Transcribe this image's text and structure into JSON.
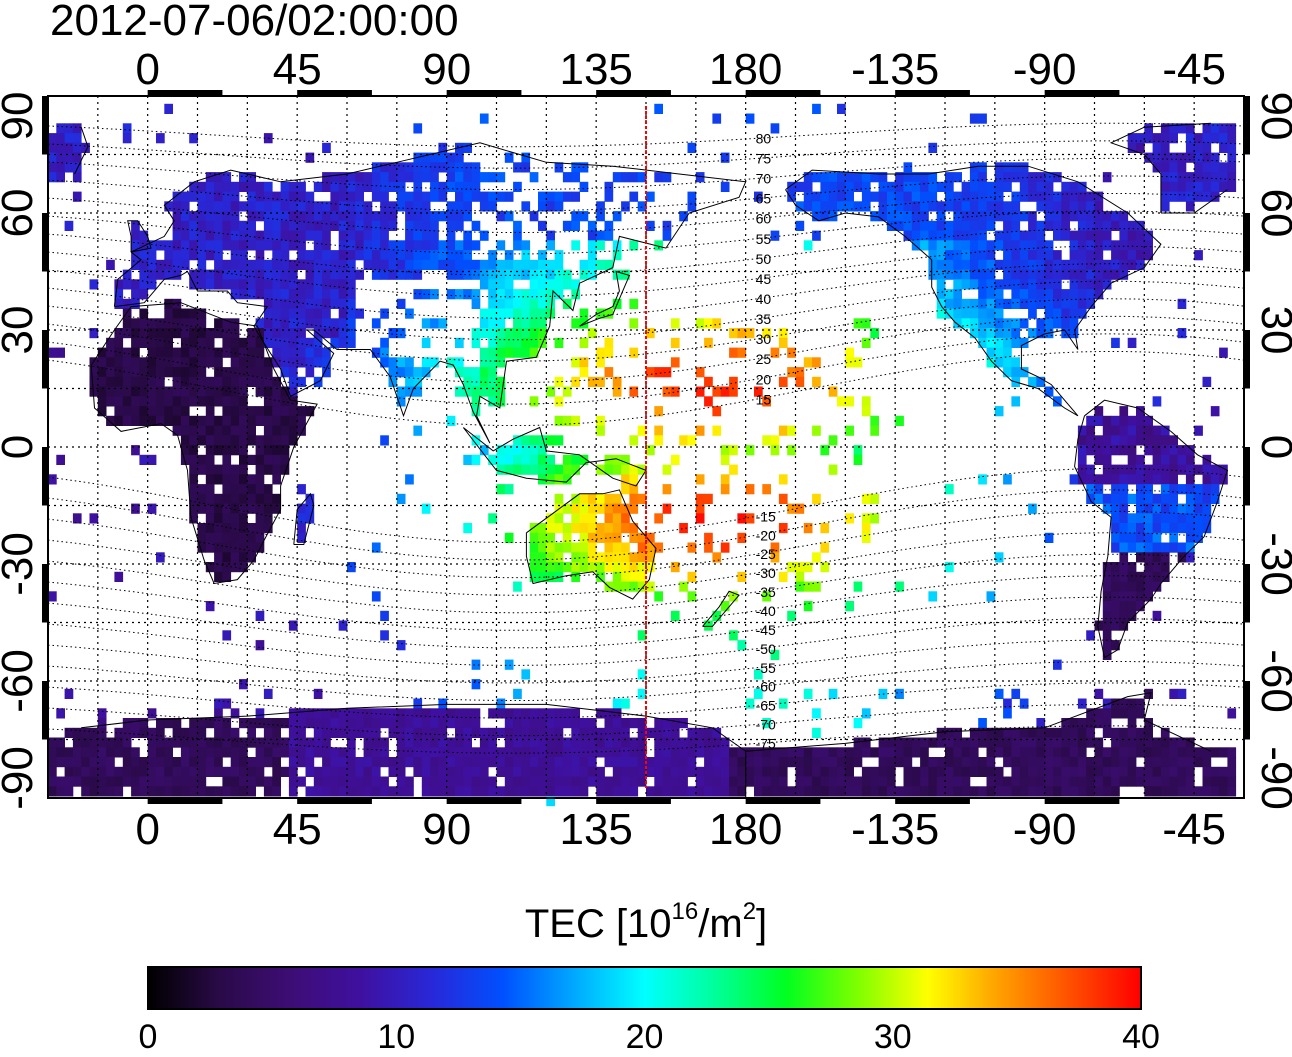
{
  "title": "2012-07-06/02:00:00",
  "map": {
    "lon_ticks_top": [
      "0",
      "45",
      "90",
      "135",
      "180",
      "-135",
      "-90",
      "-45"
    ],
    "lon_ticks_bottom": [
      "0",
      "45",
      "90",
      "135",
      "180",
      "-135",
      "-90",
      "-45"
    ],
    "lat_ticks_left": [
      "90",
      "60",
      "30",
      "0",
      "-30",
      "-60",
      "-90"
    ],
    "lat_ticks_right": [
      "90",
      "60",
      "30",
      "0",
      "-30",
      "-60",
      "-90"
    ],
    "lon_center_deg": 150,
    "magnetic_latitude_labels": [
      "80",
      "75",
      "70",
      "65",
      "60",
      "55",
      "50",
      "45",
      "40",
      "35",
      "30",
      "25",
      "20",
      "15",
      "-15",
      "-20",
      "-25",
      "-30",
      "-35",
      "-40",
      "-45",
      "-50",
      "-55",
      "-60",
      "-65",
      "-70",
      "-75"
    ],
    "colors": {
      "meridian_line": "#ff0000",
      "grid": "#000000",
      "coastline": "#000000"
    }
  },
  "colorbar": {
    "title_text": "TEC  [10",
    "title_exp": "16",
    "title_mid": "/m",
    "title_exp2": "2",
    "title_end": "]",
    "ticks": [
      "0",
      "10",
      "20",
      "30",
      "40"
    ],
    "range": [
      0,
      40
    ],
    "colormap": [
      "#000000",
      "#2a0a48",
      "#3d0d75",
      "#3f10a0",
      "#2828d8",
      "#0050ff",
      "#00a8ff",
      "#00ffff",
      "#00ff9a",
      "#00ff20",
      "#7dff00",
      "#ffff00",
      "#ffa000",
      "#ff5000",
      "#ff0000"
    ]
  }
}
